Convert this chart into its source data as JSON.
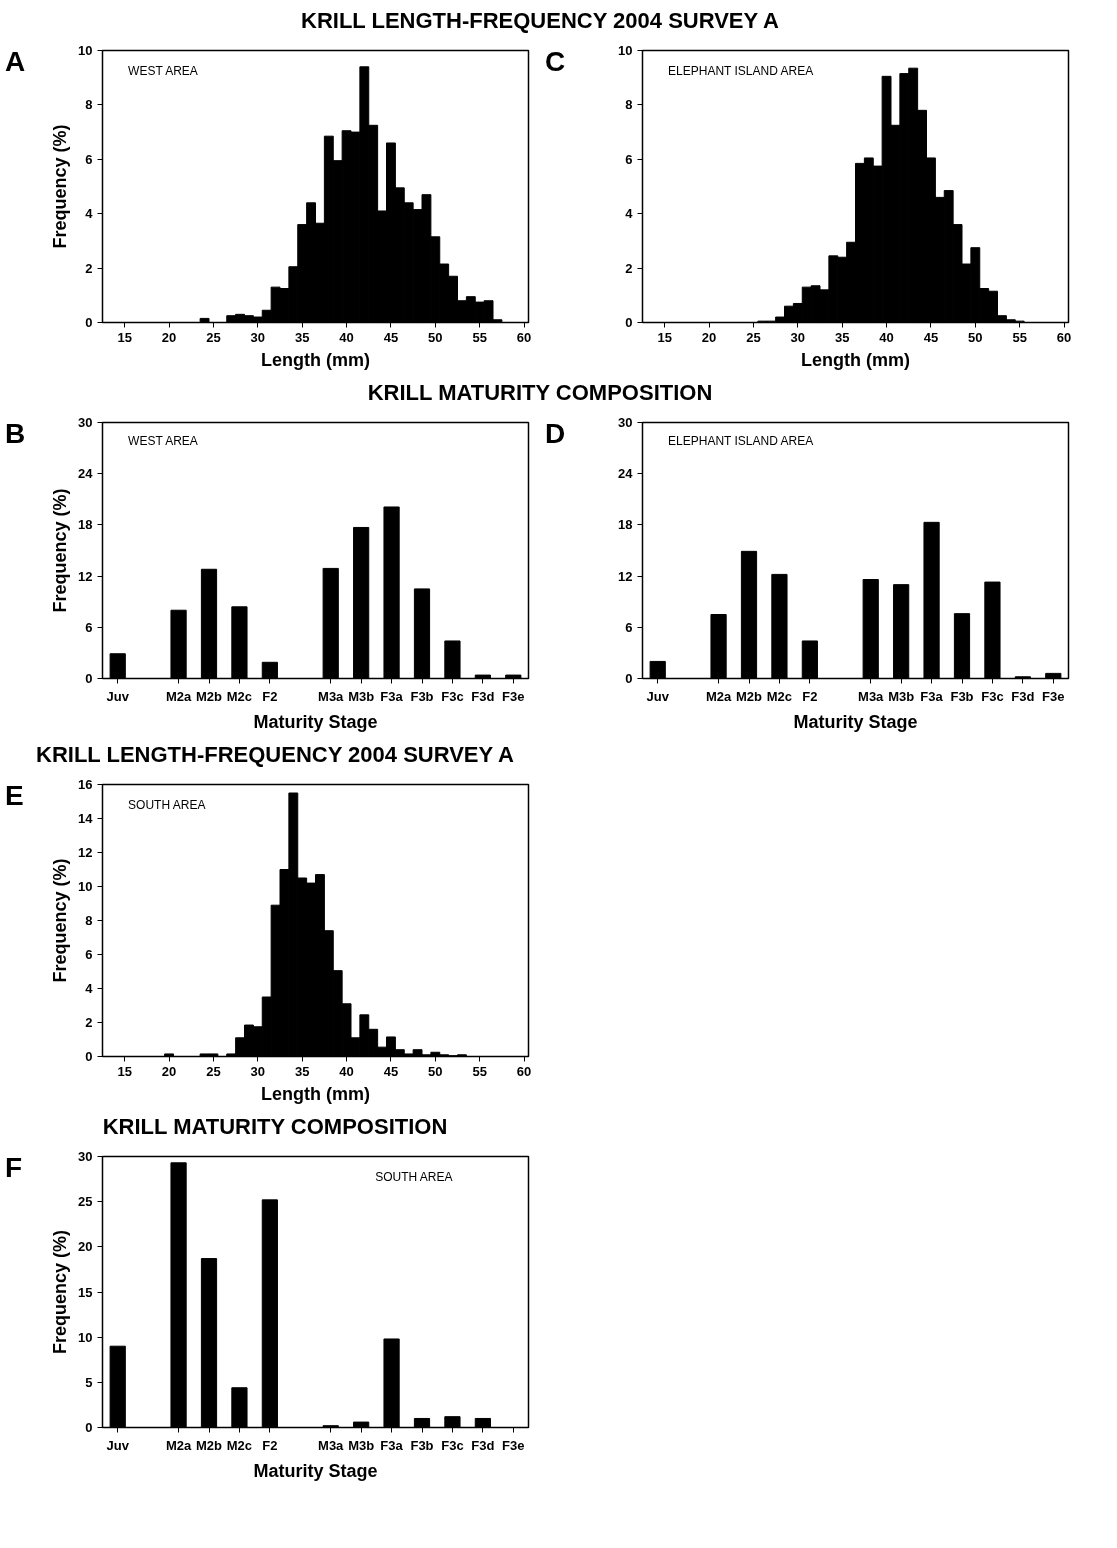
{
  "chart_data": [
    {
      "type": "histogram",
      "title": "KRILL LENGTH-FREQUENCY 2004 SURVEY A",
      "annotations": [
        "A",
        "WEST AREA"
      ],
      "xlabel": "Length (mm)",
      "ylabel": "Frequency (%)",
      "color": "#000000",
      "bins": [
        23.5,
        24.5,
        25.5,
        26.5,
        27.5,
        28.5,
        29.5,
        30.5,
        31.5,
        32.5,
        33.5,
        34.5,
        35.5,
        36.5,
        37.5,
        38.5,
        39.5,
        40.5,
        41.5,
        42.5,
        43.5,
        44.5,
        45.5,
        46.5,
        47.5,
        48.5,
        49.5,
        50.5,
        51.5,
        52.5,
        53.5,
        54.5,
        55.5,
        56.5,
        57.5
      ],
      "values": [
        0.15,
        0,
        0,
        0.25,
        0.3,
        0.25,
        0.2,
        0.45,
        1.3,
        1.25,
        2.05,
        3.6,
        4.4,
        3.65,
        6.85,
        5.95,
        7.05,
        7.0,
        9.4,
        7.25,
        4.1,
        6.6,
        4.95,
        4.4,
        4.15,
        4.7,
        3.15,
        2.15,
        1.7,
        0.8,
        0.95,
        0.75,
        0.8,
        0.1
      ],
      "xlim": [
        12.5,
        60.5
      ],
      "xticks": [
        15,
        20,
        25,
        30,
        35,
        40,
        45,
        50,
        55,
        60
      ],
      "ylim": [
        0,
        10
      ],
      "yticks": [
        0,
        2,
        4,
        6,
        8,
        10
      ]
    },
    {
      "type": "histogram",
      "annotations": [
        "C",
        "ELEPHANT ISLAND AREA"
      ],
      "xlabel": "Length (mm)",
      "color": "#000000",
      "bins": [
        25.5,
        26.5,
        27.5,
        28.5,
        29.5,
        30.5,
        31.5,
        32.5,
        33.5,
        34.5,
        35.5,
        36.5,
        37.5,
        38.5,
        39.5,
        40.5,
        41.5,
        42.5,
        43.5,
        44.5,
        45.5,
        46.5,
        47.5,
        48.5,
        49.5,
        50.5,
        51.5,
        52.5,
        53.5,
        54.5,
        55.5
      ],
      "values": [
        0.05,
        0.05,
        0.2,
        0.6,
        0.7,
        1.3,
        1.35,
        1.2,
        2.45,
        2.4,
        2.95,
        5.85,
        6.05,
        5.75,
        9.05,
        7.25,
        9.15,
        9.35,
        7.8,
        6.05,
        4.6,
        4.85,
        3.6,
        2.15,
        2.75,
        1.25,
        1.15,
        0.25,
        0.1,
        0.05
      ],
      "xlim": [
        12.5,
        60.5
      ],
      "xticks": [
        15,
        20,
        25,
        30,
        35,
        40,
        45,
        50,
        55,
        60
      ],
      "ylim": [
        0,
        10
      ],
      "yticks": [
        0,
        2,
        4,
        6,
        8,
        10
      ]
    },
    {
      "type": "bar",
      "title": "KRILL MATURITY COMPOSITION",
      "annotations": [
        "B",
        "WEST AREA"
      ],
      "xlabel": "Maturity Stage",
      "ylabel": "Frequency (%)",
      "color": "#000000",
      "categories": [
        "Juv",
        null,
        "M2a",
        "M2b",
        "M2c",
        "F2",
        null,
        "M3a",
        "M3b",
        "F3a",
        "F3b",
        "F3c",
        "F3d",
        "F3e"
      ],
      "values": [
        2.9,
        0,
        8.0,
        12.8,
        8.4,
        1.9,
        0,
        12.9,
        17.7,
        20.1,
        10.5,
        4.4,
        0.4,
        0.4
      ],
      "ylim": [
        0,
        30
      ],
      "yticks": [
        0,
        6,
        12,
        18,
        24,
        30
      ]
    },
    {
      "type": "bar",
      "annotations": [
        "D",
        "ELEPHANT ISLAND AREA"
      ],
      "xlabel": "Maturity Stage",
      "color": "#000000",
      "categories": [
        "Juv",
        null,
        "M2a",
        "M2b",
        "M2c",
        "F2",
        null,
        "M3a",
        "M3b",
        "F3a",
        "F3b",
        "F3c",
        "F3d",
        "F3e"
      ],
      "values": [
        2.0,
        0,
        7.5,
        14.9,
        12.2,
        4.4,
        0,
        11.6,
        11.0,
        18.3,
        7.6,
        11.3,
        0.2,
        0.6
      ],
      "ylim": [
        0,
        30
      ],
      "yticks": [
        0,
        6,
        12,
        18,
        24,
        30
      ]
    },
    {
      "type": "histogram",
      "title": "KRILL LENGTH-FREQUENCY 2004 SURVEY A",
      "annotations": [
        "E",
        "SOUTH AREA"
      ],
      "xlabel": "Length (mm)",
      "ylabel": "Frequency (%)",
      "color": "#000000",
      "bins": [
        19.5,
        20.5,
        21.5,
        22.5,
        23.5,
        24.5,
        25.5,
        26.5,
        27.5,
        28.5,
        29.5,
        30.5,
        31.5,
        32.5,
        33.5,
        34.5,
        35.5,
        36.5,
        37.5,
        38.5,
        39.5,
        40.5,
        41.5,
        42.5,
        43.5,
        44.5,
        45.5,
        46.5,
        47.5,
        48.5,
        49.5,
        50.5,
        51.5,
        52.5,
        53.5
      ],
      "values": [
        0.15,
        0,
        0,
        0,
        0.15,
        0.15,
        0,
        0.15,
        1.1,
        1.85,
        1.75,
        3.5,
        8.9,
        11.0,
        15.5,
        10.5,
        10.2,
        10.7,
        7.4,
        5.05,
        3.1,
        1.1,
        2.45,
        1.6,
        0.55,
        1.15,
        0.4,
        0.15,
        0.4,
        0.1,
        0.25,
        0.1,
        0.05,
        0.1
      ],
      "xlim": [
        12.5,
        60.5
      ],
      "xticks": [
        15,
        20,
        25,
        30,
        35,
        40,
        45,
        50,
        55,
        60
      ],
      "ylim": [
        0,
        16
      ],
      "yticks": [
        0,
        2,
        4,
        6,
        8,
        10,
        12,
        14,
        16
      ]
    },
    {
      "type": "bar",
      "title": "KRILL MATURITY COMPOSITION",
      "annotations": [
        "F",
        "SOUTH AREA"
      ],
      "xlabel": "Maturity Stage",
      "ylabel": "Frequency (%)",
      "color": "#000000",
      "categories": [
        "Juv",
        null,
        "M2a",
        "M2b",
        "M2c",
        "F2",
        null,
        "M3a",
        "M3b",
        "F3a",
        "F3b",
        "F3c",
        "F3d",
        "F3e"
      ],
      "values": [
        9.0,
        0,
        29.3,
        18.7,
        4.4,
        25.2,
        0,
        0.2,
        0.6,
        9.8,
        1.0,
        1.2,
        1.0,
        0
      ],
      "ylim": [
        0,
        30
      ],
      "yticks": [
        0,
        5,
        10,
        15,
        20,
        25,
        30
      ]
    }
  ]
}
